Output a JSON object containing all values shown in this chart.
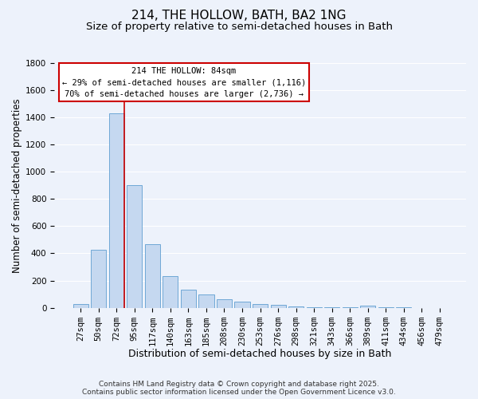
{
  "title": "214, THE HOLLOW, BATH, BA2 1NG",
  "subtitle": "Size of property relative to semi-detached houses in Bath",
  "xlabel": "Distribution of semi-detached houses by size in Bath",
  "ylabel": "Number of semi-detached properties",
  "bar_labels": [
    "27sqm",
    "50sqm",
    "72sqm",
    "95sqm",
    "117sqm",
    "140sqm",
    "163sqm",
    "185sqm",
    "208sqm",
    "230sqm",
    "253sqm",
    "276sqm",
    "298sqm",
    "321sqm",
    "343sqm",
    "366sqm",
    "389sqm",
    "411sqm",
    "434sqm",
    "456sqm",
    "479sqm"
  ],
  "bar_values": [
    30,
    425,
    1430,
    900,
    465,
    230,
    135,
    95,
    60,
    45,
    30,
    20,
    10,
    5,
    3,
    2,
    15,
    2,
    1,
    0,
    0
  ],
  "bar_color": "#c5d8f0",
  "bar_edge_color": "#6fa8d6",
  "background_color": "#edf2fb",
  "grid_color": "#ffffff",
  "vline_color": "#cc0000",
  "vline_position": 2.43,
  "ylim": [
    0,
    1800
  ],
  "yticks": [
    0,
    200,
    400,
    600,
    800,
    1000,
    1200,
    1400,
    1600,
    1800
  ],
  "annotation_title": "214 THE HOLLOW: 84sqm",
  "annotation_line1": "← 29% of semi-detached houses are smaller (1,116)",
  "annotation_line2": "70% of semi-detached houses are larger (2,736) →",
  "annotation_box_color": "#ffffff",
  "annotation_box_edge": "#cc0000",
  "footer1": "Contains HM Land Registry data © Crown copyright and database right 2025.",
  "footer2": "Contains public sector information licensed under the Open Government Licence v3.0.",
  "title_fontsize": 11,
  "subtitle_fontsize": 9.5,
  "xlabel_fontsize": 9,
  "ylabel_fontsize": 8.5,
  "tick_fontsize": 7.5,
  "annotation_fontsize": 7.5,
  "footer_fontsize": 6.5
}
